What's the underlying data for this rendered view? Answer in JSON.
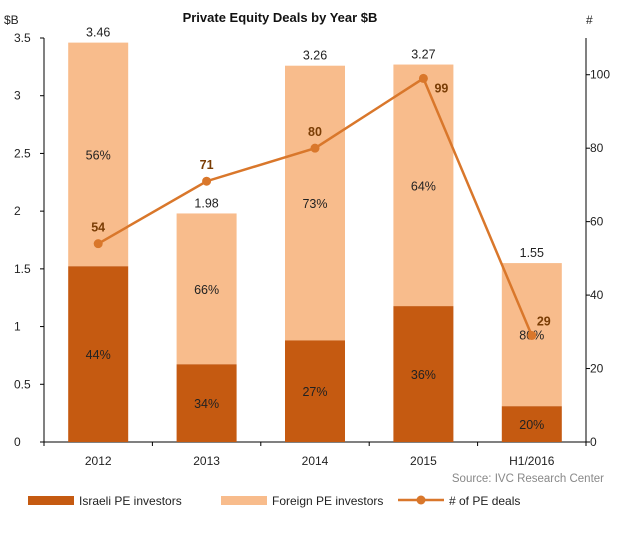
{
  "chart_data": {
    "type": "bar",
    "title": "Private Equity Deals by Year $B",
    "ylabel_left": "$B",
    "ylabel_right": "#",
    "categories": [
      "2012",
      "2013",
      "2014",
      "2015",
      "H1/2016"
    ],
    "ylim_left": [
      0,
      3.5
    ],
    "ylim_right": [
      0,
      110
    ],
    "yticks_left": [
      "0",
      "0.5",
      "1",
      "1.5",
      "2",
      "2.5",
      "3",
      "3.5"
    ],
    "yticks_right": [
      "0",
      "20",
      "40",
      "60",
      "80",
      "100"
    ],
    "totals": [
      3.46,
      1.98,
      3.26,
      3.27,
      1.55
    ],
    "total_labels": [
      "3.46",
      "1.98",
      "3.26",
      "3.27",
      "1.55"
    ],
    "series": [
      {
        "name": "Israeli PE investors",
        "type": "bar",
        "color": "#c55a11",
        "share_pct": [
          44,
          34,
          27,
          36,
          20
        ],
        "share_labels": [
          "44%",
          "34%",
          "27%",
          "36%",
          "20%"
        ]
      },
      {
        "name": "Foreign PE investors",
        "type": "bar",
        "color": "#f8bc8c",
        "share_pct": [
          56,
          66,
          73,
          64,
          80
        ],
        "share_labels": [
          "56%",
          "66%",
          "73%",
          "64%",
          "80%"
        ]
      },
      {
        "name": "# of PE deals",
        "type": "line",
        "axis": "right",
        "color": "#d9772b",
        "values": [
          54,
          71,
          80,
          99,
          29
        ],
        "value_labels": [
          "54",
          "71",
          "80",
          "99",
          "29"
        ]
      }
    ],
    "source": "Source: IVC Research Center",
    "legend_position": "bottom"
  }
}
